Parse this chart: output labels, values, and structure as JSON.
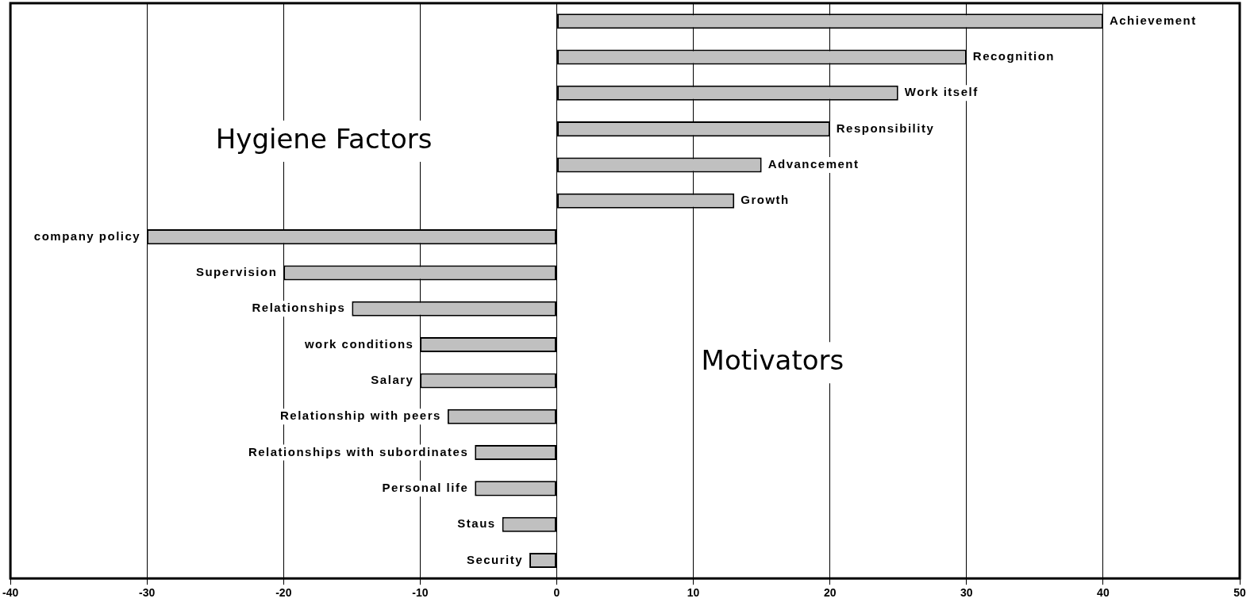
{
  "chart_data": {
    "type": "bar",
    "orientation": "horizontal",
    "categories": [
      "Achievement",
      "Recognition",
      "Work itself",
      "Responsibility",
      "Advancement",
      "Growth",
      "company policy",
      "Supervision",
      "Relationships",
      "work conditions",
      "Salary",
      "Relationship with peers",
      "Relationships with subordinates",
      "Personal life",
      "Staus",
      "Security"
    ],
    "values": [
      40,
      30,
      25,
      20,
      15,
      13,
      -30,
      -20,
      -15,
      -10,
      -10,
      -8,
      -6,
      -6,
      -4,
      -2
    ],
    "color": "#c0c0c0",
    "xlim": [
      -40,
      50
    ],
    "xticks": [
      -40,
      -30,
      -20,
      -10,
      0,
      10,
      20,
      30,
      40,
      50
    ],
    "grid": "x",
    "legend": false,
    "annotations": [
      "Hygiene Factors",
      "Motivators"
    ]
  }
}
